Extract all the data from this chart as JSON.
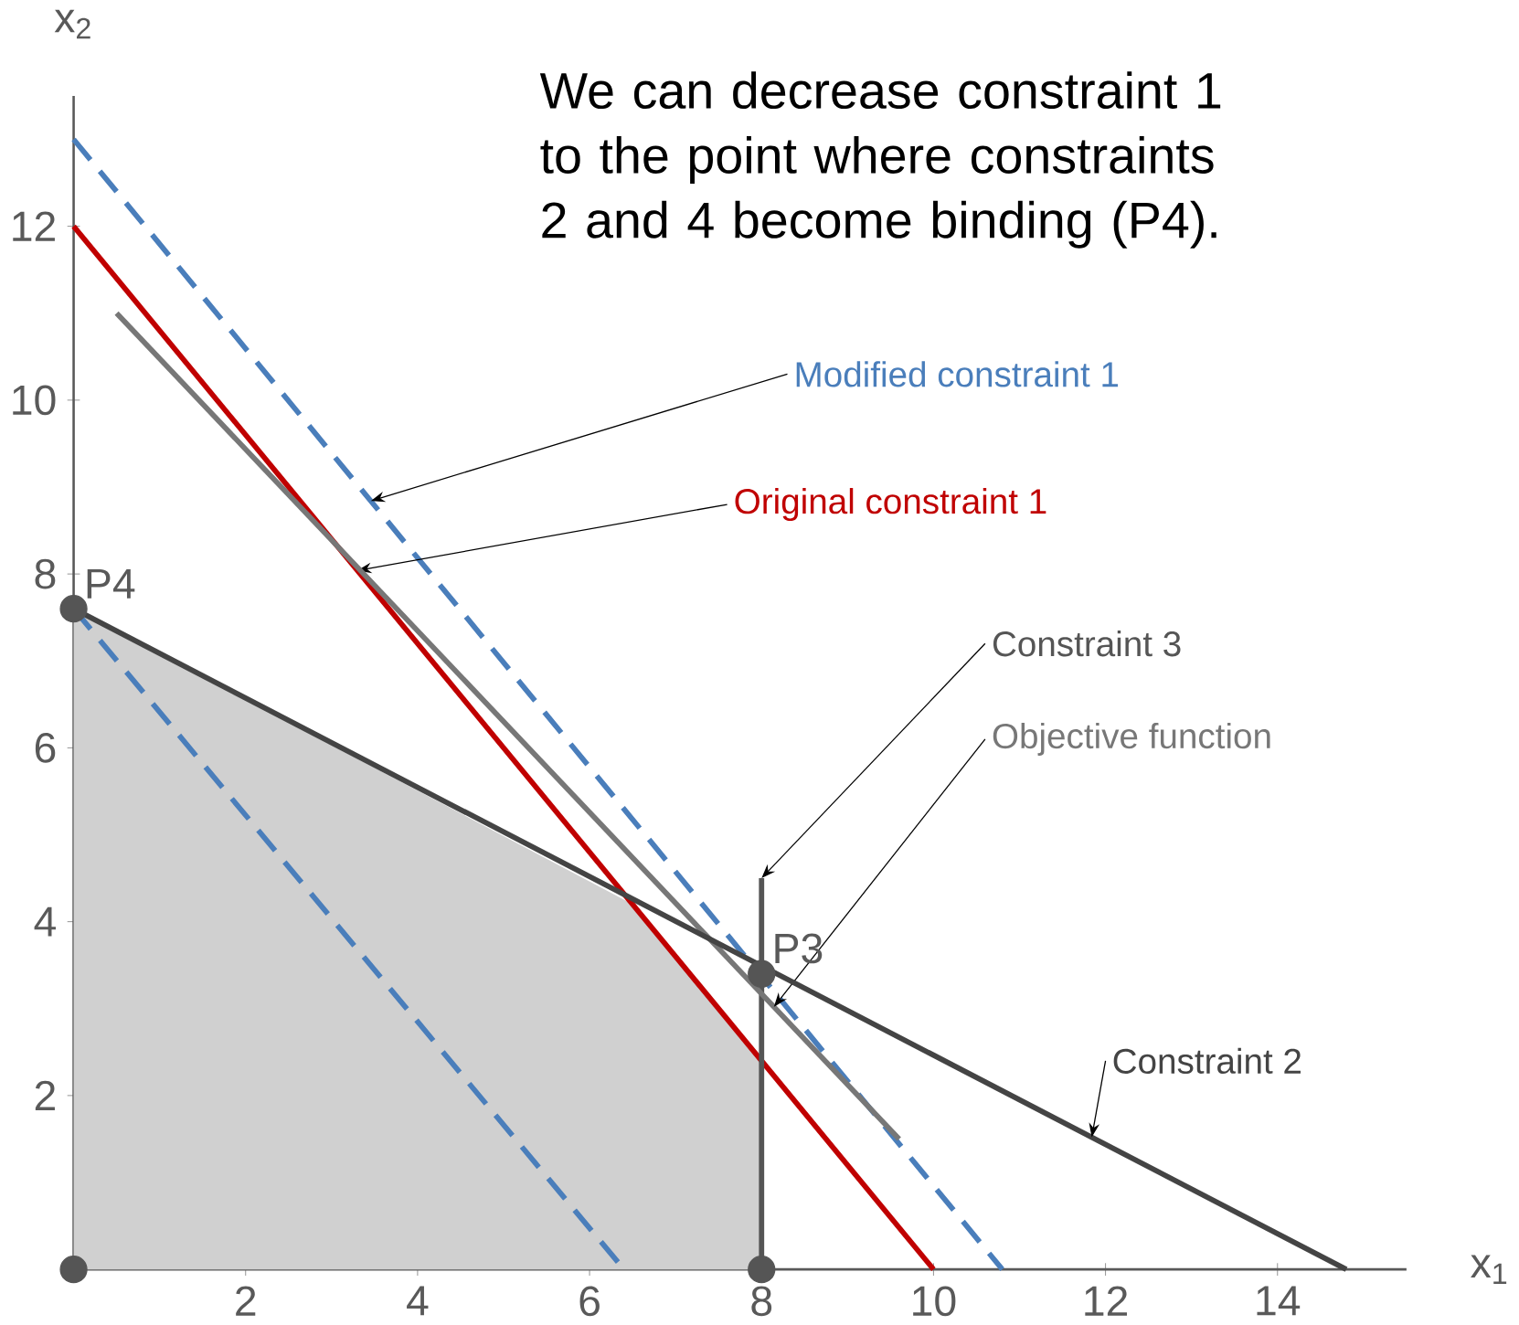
{
  "chart_data": {
    "type": "line",
    "xlabel": "x$_{1}$",
    "ylabel": "x$_{2}$",
    "xlim": [
      0,
      15.5
    ],
    "ylim": [
      0,
      13.5
    ],
    "xticks": [
      2,
      4,
      6,
      8,
      10,
      12,
      14
    ],
    "yticks": [
      2,
      4,
      6,
      8,
      10,
      12
    ],
    "grid": false,
    "series": [
      {
        "type": "area",
        "color": "#d0d0d0",
        "x": [
          0,
          0,
          6.5,
          8,
          8
        ],
        "values": [
          0,
          7.6,
          4.2,
          2.4,
          0
        ]
      },
      {
        "name": "Modified constraint 1",
        "color": "#4a7ebb",
        "line_style": "dashed",
        "x": [
          0,
          10.8
        ],
        "values": [
          13,
          0
        ]
      },
      {
        "name": "Original constraint 1",
        "color": "#c00000",
        "line_style": "solid",
        "x": [
          0,
          10
        ],
        "values": [
          12,
          0
        ]
      },
      {
        "name": "Constraint 3",
        "color": "#555555",
        "line_style": "solid",
        "x": [
          8,
          8
        ],
        "values": [
          0,
          4.5
        ]
      },
      {
        "name": "Objective function",
        "color": "#777777",
        "line_style": "solid",
        "x": [
          0.5,
          9.6
        ],
        "values": [
          11,
          1.5
        ]
      },
      {
        "name": "Constraint 2",
        "color": "#444444",
        "line_style": "solid",
        "x": [
          0,
          14.8
        ],
        "values": [
          7.6,
          0
        ]
      },
      {
        "color": "#4a7ebb",
        "line_style": "dashed",
        "x": [
          0,
          6.4
        ],
        "values": [
          7.6,
          0
        ]
      },
      {
        "type": "scatter",
        "color": "#555555",
        "marker": "circle",
        "x": [
          0,
          0,
          8,
          8
        ],
        "values": [
          0,
          7.6,
          3.4,
          0
        ]
      }
    ],
    "annotations": [
      "We can decrease constraint 1 to the point where constraints 2 and 4 become binding (P4).",
      {
        "text": "P4",
        "x": 0,
        "y": 7.6
      },
      {
        "text": "P3",
        "x": 8,
        "y": 3.4
      }
    ]
  }
}
